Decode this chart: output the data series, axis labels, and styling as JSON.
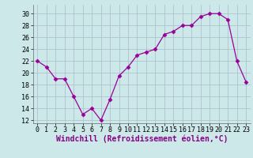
{
  "x": [
    0,
    1,
    2,
    3,
    4,
    5,
    6,
    7,
    8,
    9,
    10,
    11,
    12,
    13,
    14,
    15,
    16,
    17,
    18,
    19,
    20,
    21,
    22,
    23
  ],
  "y": [
    22,
    21,
    19,
    19,
    16,
    13,
    14,
    12,
    15.5,
    19.5,
    21,
    23,
    23.5,
    24,
    26.5,
    27,
    28,
    28,
    29.5,
    30,
    30,
    29,
    22,
    18.5
  ],
  "line_color": "#990099",
  "marker": "D",
  "marker_size": 2.5,
  "background_color": "#cce8e8",
  "grid_color": "#aabbcc",
  "xlabel": "Windchill (Refroidissement éolien,°C)",
  "xlabel_fontsize": 7,
  "xlabel_color": "#880088",
  "yticks": [
    12,
    14,
    16,
    18,
    20,
    22,
    24,
    26,
    28,
    30
  ],
  "xtick_labels": [
    "0",
    "1",
    "2",
    "3",
    "4",
    "5",
    "6",
    "7",
    "8",
    "9",
    "10",
    "11",
    "12",
    "13",
    "14",
    "15",
    "16",
    "17",
    "18",
    "19",
    "20",
    "21",
    "22",
    "23"
  ],
  "ylim": [
    11.5,
    31.5
  ],
  "xlim": [
    -0.5,
    23.5
  ],
  "tick_fontsize": 6,
  "tick_color": "#000000"
}
